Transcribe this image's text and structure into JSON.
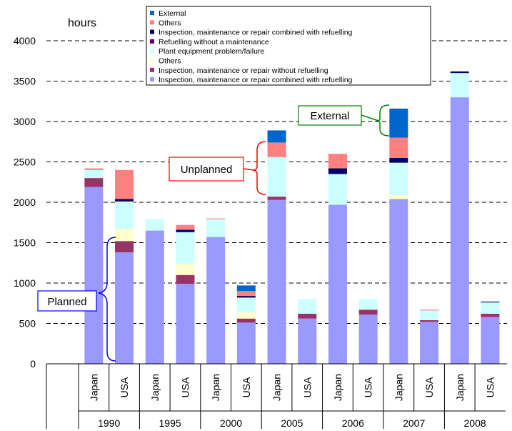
{
  "chart_data": {
    "type": "bar",
    "stacked": true,
    "yunit": "hours",
    "ylim": [
      0,
      4000
    ],
    "yticks": [
      0,
      500,
      1000,
      1500,
      2000,
      2500,
      3000,
      3500,
      4000
    ],
    "grid": "dashed horizontal",
    "legend_position": "top",
    "categories": [
      {
        "country": "Japan",
        "year": "1990"
      },
      {
        "country": "USA",
        "year": "1990"
      },
      {
        "country": "Japan",
        "year": "1995"
      },
      {
        "country": "USA",
        "year": "1995"
      },
      {
        "country": "Japan",
        "year": "2000"
      },
      {
        "country": "USA",
        "year": "2000"
      },
      {
        "country": "Japan",
        "year": "2005"
      },
      {
        "country": "USA",
        "year": "2005"
      },
      {
        "country": "Japan",
        "year": "2006"
      },
      {
        "country": "USA",
        "year": "2006"
      },
      {
        "country": "Japan",
        "year": "2007"
      },
      {
        "country": "USA",
        "year": "2007"
      },
      {
        "country": "Japan",
        "year": "2008"
      },
      {
        "country": "USA",
        "year": "2008"
      }
    ],
    "year_groups": [
      "1990",
      "1995",
      "2000",
      "2005",
      "2006",
      "2007",
      "2008"
    ],
    "series": [
      {
        "name": "Inspection, maintenance or repair combined with refuelling",
        "color": "#9999ff",
        "values": [
          2190,
          1380,
          1650,
          990,
          1570,
          510,
          2030,
          560,
          1970,
          610,
          2040,
          520,
          3300,
          580
        ]
      },
      {
        "name": "Inspection, maintenance or repair without refuelling",
        "color": "#993366",
        "values": [
          110,
          140,
          0,
          110,
          0,
          50,
          40,
          60,
          0,
          60,
          0,
          20,
          0,
          40
        ]
      },
      {
        "name": "Others",
        "color": "#ffffcc",
        "values": [
          0,
          150,
          0,
          140,
          0,
          80,
          0,
          0,
          0,
          0,
          50,
          0,
          0,
          0
        ]
      },
      {
        "name": "Plant equipment problem/failure",
        "color": "#ccffff",
        "values": [
          100,
          340,
          140,
          390,
          220,
          180,
          490,
          180,
          380,
          130,
          400,
          120,
          300,
          140
        ]
      },
      {
        "name": "Refuelling without a maintenance",
        "color": "#660066",
        "values": [
          0,
          0,
          0,
          0,
          0,
          0,
          0,
          0,
          0,
          0,
          0,
          0,
          0,
          0
        ]
      },
      {
        "name": "Inspection, maintenance or repair combined with refuelling",
        "color": "#000066",
        "values": [
          0,
          30,
          0,
          30,
          0,
          20,
          0,
          0,
          70,
          0,
          60,
          0,
          20,
          10
        ]
      },
      {
        "name": "Others",
        "color": "#ff8080",
        "values": [
          20,
          360,
          0,
          60,
          10,
          60,
          180,
          0,
          180,
          0,
          250,
          10,
          0,
          0
        ]
      },
      {
        "name": "External",
        "color": "#0066cc",
        "values": [
          0,
          0,
          0,
          0,
          0,
          70,
          150,
          0,
          0,
          0,
          360,
          0,
          0,
          0
        ]
      }
    ],
    "annotations": [
      {
        "text": "External",
        "color": "#008000"
      },
      {
        "text": "Unplanned",
        "color": "#ff0000"
      },
      {
        "text": "Planned",
        "color": "#0000ff"
      }
    ]
  }
}
